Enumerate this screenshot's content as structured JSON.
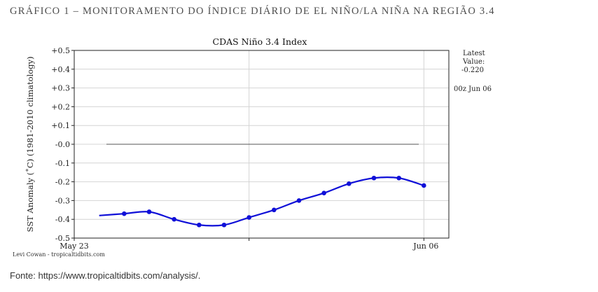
{
  "figure": {
    "heading": "GRÁFICO 1 – MONITORAMENTO DO ÍNDICE DIÁRIO DE EL NIÑO/LA NIÑA NA REGIÃO 3.4",
    "source": "Fonte: https://www.tropicaltidbits.com/analysis/."
  },
  "chart_data": {
    "type": "line",
    "title": "CDAS Niño 3.4 Index",
    "ylabel": "SST Anomaly (˚C) (1981-2010 climatology)",
    "xlabel": "",
    "ylim": [
      -0.5,
      0.5
    ],
    "yticks": [
      0.5,
      0.4,
      0.3,
      0.2,
      0.1,
      0.0,
      -0.1,
      -0.2,
      -0.3,
      -0.4,
      -0.5
    ],
    "ytick_labels": [
      "+0.5",
      "+0.4",
      "+0.3",
      "+0.2",
      "+0.1",
      "-0.0",
      "-0.1",
      "-0.2",
      "-0.3",
      "-0.4",
      "-0.5"
    ],
    "xlim": [
      "2019-05-23",
      "2019-06-07"
    ],
    "xticks": [
      "2019-05-23",
      "2019-05-30",
      "2019-06-06"
    ],
    "xtick_labels": [
      "May 23",
      "",
      "Jun 06"
    ],
    "grid": true,
    "zero_line": 0.0,
    "series": [
      {
        "color": "#1010d8",
        "x": [
          "2019-05-24",
          "2019-05-25",
          "2019-05-26",
          "2019-05-27",
          "2019-05-28",
          "2019-05-29",
          "2019-05-30",
          "2019-05-31",
          "2019-06-01",
          "2019-06-02",
          "2019-06-03",
          "2019-06-04",
          "2019-06-05",
          "2019-06-06"
        ],
        "y": [
          -0.38,
          -0.37,
          -0.36,
          -0.4,
          -0.43,
          -0.43,
          -0.39,
          -0.35,
          -0.3,
          -0.26,
          -0.21,
          -0.18,
          -0.18,
          -0.22
        ]
      }
    ],
    "side_panel": {
      "latest_label_1": "Latest",
      "latest_label_2": "Value:",
      "latest_value": "-0.220",
      "timestamp": "00z Jun 06"
    },
    "credit": "Levi Cowan - tropicaltidbits.com"
  }
}
